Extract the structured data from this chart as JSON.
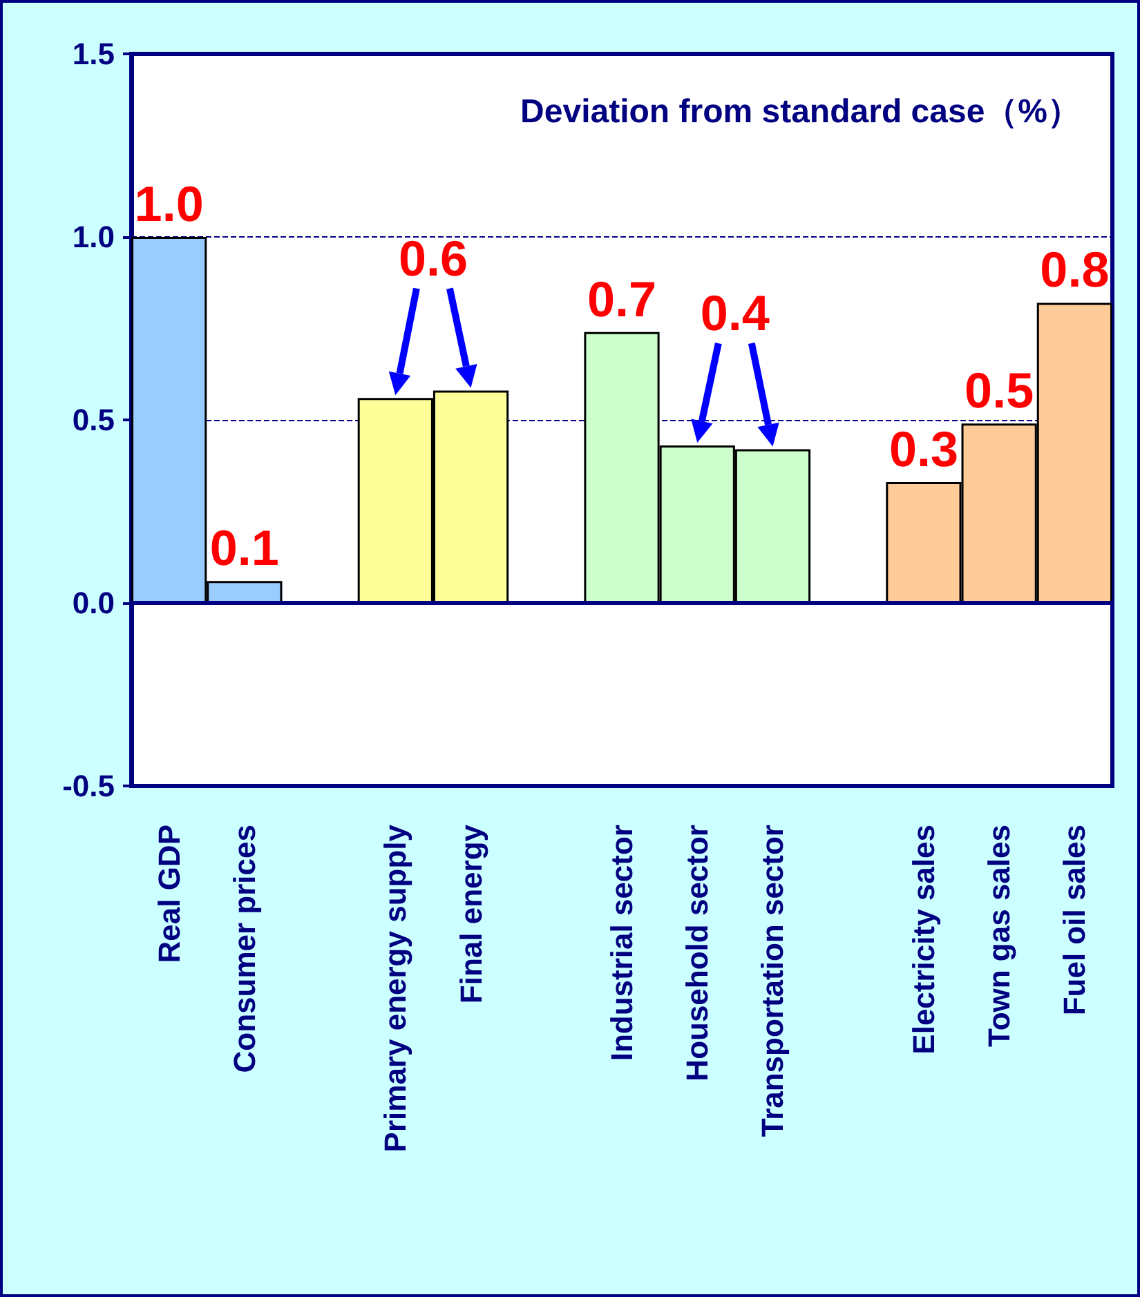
{
  "chart_data": {
    "type": "bar",
    "title": "Deviation from standard case（%）",
    "categories": [
      "Real GDP",
      "Consumer prices",
      null,
      "Primary energy supply",
      "Final energy",
      null,
      "Industrial sector",
      "Household sector",
      "Transportation sector",
      null,
      "Electricity sales",
      "Town gas sales",
      "Fuel oil sales"
    ],
    "values": [
      1.0,
      0.06,
      null,
      0.56,
      0.58,
      null,
      0.74,
      0.43,
      0.42,
      null,
      0.33,
      0.49,
      0.82
    ],
    "colors": [
      "#99ccff",
      "#99ccff",
      null,
      "#ffff99",
      "#ffff99",
      null,
      "#ccffcc",
      "#ccffcc",
      "#ccffcc",
      null,
      "#ffcc99",
      "#ffcc99",
      "#ffcc99"
    ],
    "value_labels": [
      "1.0",
      "0.1",
      null,
      null,
      null,
      null,
      "0.7",
      null,
      null,
      null,
      "0.3",
      "0.5",
      "0.8"
    ],
    "annotations": [
      "0.6",
      "0.4"
    ],
    "ref_lines": [
      {
        "axis": "y",
        "value": 0,
        "color": "#000080"
      }
    ],
    "ylim": [
      -0.5,
      1.5
    ],
    "yticks": [
      {
        "value": -0.5,
        "label": "-0.5"
      },
      {
        "value": 0,
        "label": "0.0"
      },
      {
        "value": 0.5,
        "label": "0.5"
      },
      {
        "value": 1,
        "label": "1.0"
      },
      {
        "value": 1.5,
        "label": "1.5"
      }
    ],
    "grid": "y"
  }
}
